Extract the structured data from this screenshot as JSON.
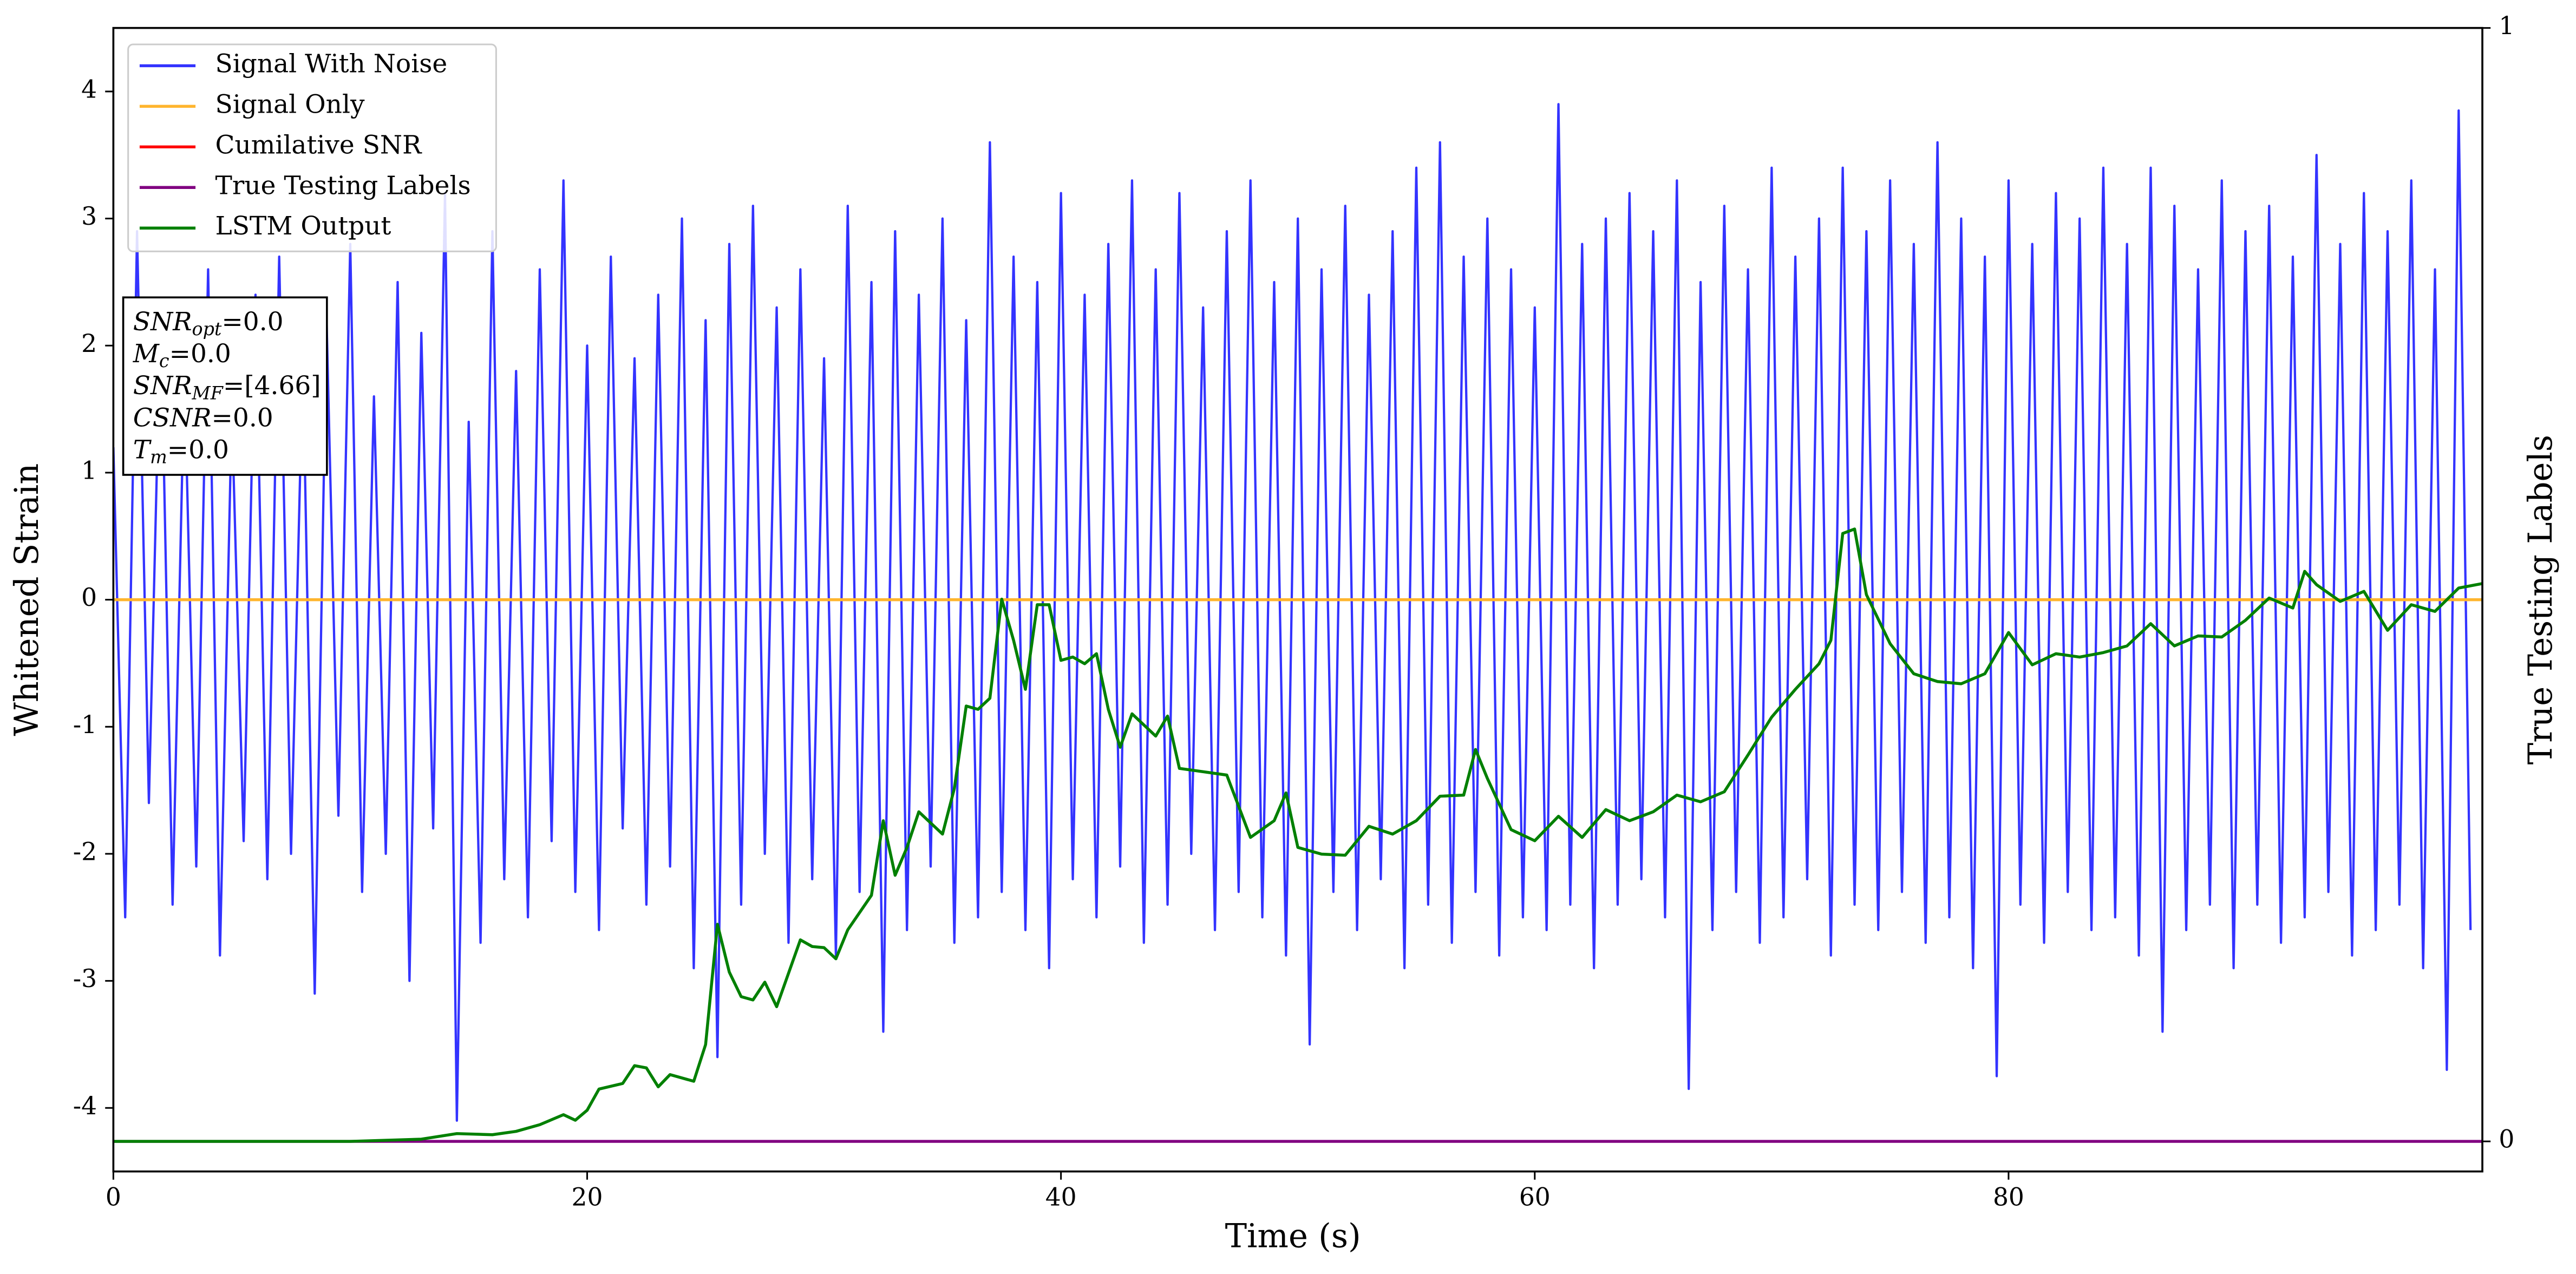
{
  "chart_data": {
    "type": "line",
    "xlabel": "Time (s)",
    "ylabel": "Whitened Strain",
    "y2label": "True Testing Labels",
    "xlim": [
      0,
      100
    ],
    "xticks": [
      0,
      20,
      40,
      60,
      80
    ],
    "ylim": [
      -4.5,
      4.5
    ],
    "yticks": [
      -4,
      -3,
      -2,
      -1,
      0,
      1,
      2,
      3,
      4
    ],
    "y2lim": [
      -0.027,
      1
    ],
    "y2ticks": [
      0,
      1
    ],
    "legend": "upper left",
    "annotation_box": [
      {
        "label": "SNR",
        "subscript": "opt",
        "suffix": "=0.0"
      },
      {
        "label": "M",
        "subscript": "c",
        "suffix": "=0.0"
      },
      {
        "label": "SNR",
        "subscript": "MF",
        "suffix": "=[4.66]"
      },
      {
        "label": "CSNR",
        "suffix": "=0.0"
      },
      {
        "label": "T",
        "subscript": "m",
        "suffix": "=0.0"
      }
    ],
    "series": [
      {
        "name": "Signal With Noise",
        "color": "#3333ff",
        "axis": "y",
        "x": [
          0,
          0.5,
          1,
          1.5,
          2,
          2.5,
          3,
          3.5,
          4,
          4.5,
          5,
          5.5,
          6,
          6.5,
          7,
          7.5,
          8,
          8.5,
          9,
          9.5,
          10,
          10.5,
          11,
          11.5,
          12,
          12.5,
          13,
          13.5,
          14,
          14.5,
          15,
          15.5,
          16,
          16.5,
          17,
          17.5,
          18,
          18.5,
          19,
          19.5,
          20,
          20.5,
          21,
          21.5,
          22,
          22.5,
          23,
          23.5,
          24,
          24.5,
          25,
          25.5,
          26,
          26.5,
          27,
          27.5,
          28,
          28.5,
          29,
          29.5,
          30,
          30.5,
          31,
          31.5,
          32,
          32.5,
          33,
          33.5,
          34,
          34.5,
          35,
          35.5,
          36,
          36.5,
          37,
          37.5,
          38,
          38.5,
          39,
          39.5,
          40,
          40.5,
          41,
          41.5,
          42,
          42.5,
          43,
          43.5,
          44,
          44.5,
          45,
          45.5,
          46,
          46.5,
          47,
          47.5,
          48,
          48.5,
          49,
          49.5,
          50,
          50.5,
          51,
          51.5,
          52,
          52.5,
          53,
          53.5,
          54,
          54.5,
          55,
          55.5,
          56,
          56.5,
          57,
          57.5,
          58,
          58.5,
          59,
          59.5,
          60,
          60.5,
          61,
          61.5,
          62,
          62.5,
          63,
          63.5,
          64,
          64.5,
          65,
          65.5,
          66,
          66.5,
          67,
          67.5,
          68,
          68.5,
          69,
          69.5,
          70,
          70.5,
          71,
          71.5,
          72,
          72.5,
          73,
          73.5,
          74,
          74.5,
          75,
          75.5,
          76,
          76.5,
          77,
          77.5,
          78,
          78.5,
          79,
          79.5,
          80,
          80.5,
          81,
          81.5,
          82,
          82.5,
          83,
          83.5,
          84,
          84.5,
          85,
          85.5,
          86,
          86.5,
          87,
          87.5,
          88,
          88.5,
          89,
          89.5,
          90,
          90.5,
          91,
          91.5,
          92,
          92.5,
          93,
          93.5,
          94,
          94.5,
          95,
          95.5,
          96,
          96.5,
          97,
          97.5,
          98,
          98.5,
          99,
          99.5
        ],
        "values": [
          1.2,
          -2.5,
          2.9,
          -1.6,
          2.3,
          -2.4,
          1.8,
          -2.1,
          2.6,
          -2.8,
          1.5,
          -1.9,
          2.4,
          -2.2,
          2.7,
          -2.0,
          1.9,
          -3.1,
          2.2,
          -1.7,
          2.8,
          -2.3,
          1.6,
          -2.0,
          2.5,
          -3.0,
          2.1,
          -1.8,
          3.2,
          -4.1,
          1.4,
          -2.7,
          2.9,
          -2.2,
          1.8,
          -2.5,
          2.6,
          -1.9,
          3.3,
          -2.3,
          2.0,
          -2.6,
          2.7,
          -1.8,
          1.9,
          -2.4,
          2.4,
          -2.1,
          3.0,
          -2.9,
          2.2,
          -3.6,
          2.8,
          -2.4,
          3.1,
          -2.0,
          2.3,
          -2.7,
          2.6,
          -2.2,
          1.9,
          -2.8,
          3.1,
          -2.3,
          2.5,
          -3.4,
          2.9,
          -2.6,
          2.4,
          -2.1,
          3.0,
          -2.7,
          2.2,
          -2.5,
          3.6,
          -2.3,
          2.7,
          -2.6,
          2.5,
          -2.9,
          3.2,
          -2.2,
          2.4,
          -2.5,
          2.8,
          -2.1,
          3.3,
          -2.7,
          2.6,
          -2.4,
          3.2,
          -2.0,
          2.3,
          -2.6,
          2.9,
          -2.3,
          3.3,
          -2.5,
          2.5,
          -2.8,
          3.0,
          -3.5,
          2.6,
          -2.3,
          3.1,
          -2.6,
          2.4,
          -2.2,
          2.9,
          -2.9,
          3.4,
          -2.4,
          3.6,
          -2.7,
          2.7,
          -2.3,
          3.0,
          -2.8,
          2.6,
          -2.5,
          2.3,
          -2.6,
          3.9,
          -2.4,
          2.8,
          -2.9,
          3.0,
          -2.4,
          3.2,
          -2.2,
          2.9,
          -2.5,
          3.3,
          -3.85,
          2.5,
          -2.6,
          3.1,
          -2.3,
          2.6,
          -2.7,
          3.4,
          -2.5,
          2.7,
          -2.2,
          3.0,
          -2.8,
          3.4,
          -2.4,
          2.9,
          -2.6,
          3.3,
          -2.3,
          2.8,
          -2.7,
          3.6,
          -2.5,
          3.0,
          -2.9,
          2.7,
          -3.75,
          3.3,
          -2.4,
          2.8,
          -2.7,
          3.2,
          -2.3,
          3.0,
          -2.6,
          3.4,
          -2.5,
          2.8,
          -2.8,
          3.4,
          -3.4,
          3.1,
          -2.6,
          2.6,
          -2.4,
          3.3,
          -2.9,
          2.9,
          -2.4,
          3.1,
          -2.7,
          2.7,
          -2.5,
          3.5,
          -2.3,
          2.8,
          -2.8,
          3.2,
          -2.6,
          2.9,
          -2.4,
          3.3,
          -2.9,
          2.6,
          -3.7,
          3.85,
          -2.6
        ]
      },
      {
        "name": "Signal Only",
        "color": "#ffb52e",
        "axis": "y",
        "x": [
          0,
          100
        ],
        "values": [
          0,
          0
        ]
      },
      {
        "name": "Cumilative SNR",
        "color": "#ff0000",
        "axis": "y",
        "x": [],
        "values": []
      },
      {
        "name": "True Testing Labels",
        "color": "#800080",
        "axis": "y2",
        "x": [
          0,
          100
        ],
        "values": [
          0,
          0
        ]
      },
      {
        "name": "LSTM Output",
        "color": "#008000",
        "axis": "y2",
        "x": [
          0,
          10,
          13,
          14.5,
          16,
          17,
          18,
          19,
          19.5,
          20,
          20.5,
          21.5,
          22,
          22.5,
          23,
          23.5,
          24.5,
          25,
          25.5,
          26,
          26.5,
          27,
          27.5,
          28,
          29,
          29.5,
          30,
          30.5,
          31,
          32,
          32.5,
          33,
          33.5,
          34,
          35,
          35.5,
          36,
          36.5,
          37,
          37.5,
          38,
          38.5,
          39,
          39.5,
          40,
          40.5,
          41,
          41.5,
          42,
          42.5,
          43,
          44,
          44.5,
          45,
          46,
          47,
          48,
          49,
          49.5,
          50,
          51,
          52,
          53,
          54,
          55,
          56,
          57,
          57.5,
          58,
          59,
          60,
          61,
          62,
          63,
          64,
          65,
          66,
          67,
          68,
          69,
          70,
          71,
          72,
          72.5,
          73,
          73.5,
          74,
          75,
          76,
          77,
          78,
          79,
          80,
          81,
          82,
          83,
          84,
          85,
          86,
          87,
          88,
          89,
          90,
          91,
          92,
          92.5,
          93,
          94,
          95,
          96,
          97,
          98,
          99,
          100
        ],
        "values": [
          0,
          0,
          0.002,
          0.007,
          0.006,
          0.009,
          0.015,
          0.024,
          0.019,
          0.028,
          0.047,
          0.052,
          0.068,
          0.066,
          0.049,
          0.06,
          0.054,
          0.087,
          0.195,
          0.152,
          0.13,
          0.127,
          0.143,
          0.121,
          0.181,
          0.175,
          0.174,
          0.164,
          0.19,
          0.221,
          0.288,
          0.239,
          0.264,
          0.296,
          0.276,
          0.317,
          0.391,
          0.388,
          0.398,
          0.487,
          0.45,
          0.406,
          0.482,
          0.482,
          0.432,
          0.435,
          0.429,
          0.438,
          0.388,
          0.354,
          0.384,
          0.364,
          0.382,
          0.335,
          0.332,
          0.329,
          0.273,
          0.288,
          0.313,
          0.264,
          0.258,
          0.257,
          0.283,
          0.276,
          0.288,
          0.31,
          0.311,
          0.352,
          0.326,
          0.28,
          0.27,
          0.292,
          0.273,
          0.298,
          0.288,
          0.296,
          0.311,
          0.305,
          0.314,
          0.347,
          0.381,
          0.406,
          0.429,
          0.45,
          0.546,
          0.55,
          0.491,
          0.447,
          0.42,
          0.413,
          0.411,
          0.42,
          0.457,
          0.428,
          0.438,
          0.435,
          0.439,
          0.445,
          0.465,
          0.445,
          0.454,
          0.453,
          0.468,
          0.488,
          0.479,
          0.512,
          0.5,
          0.485,
          0.494,
          0.459,
          0.482,
          0.476,
          0.497,
          0.501
        ]
      }
    ]
  }
}
